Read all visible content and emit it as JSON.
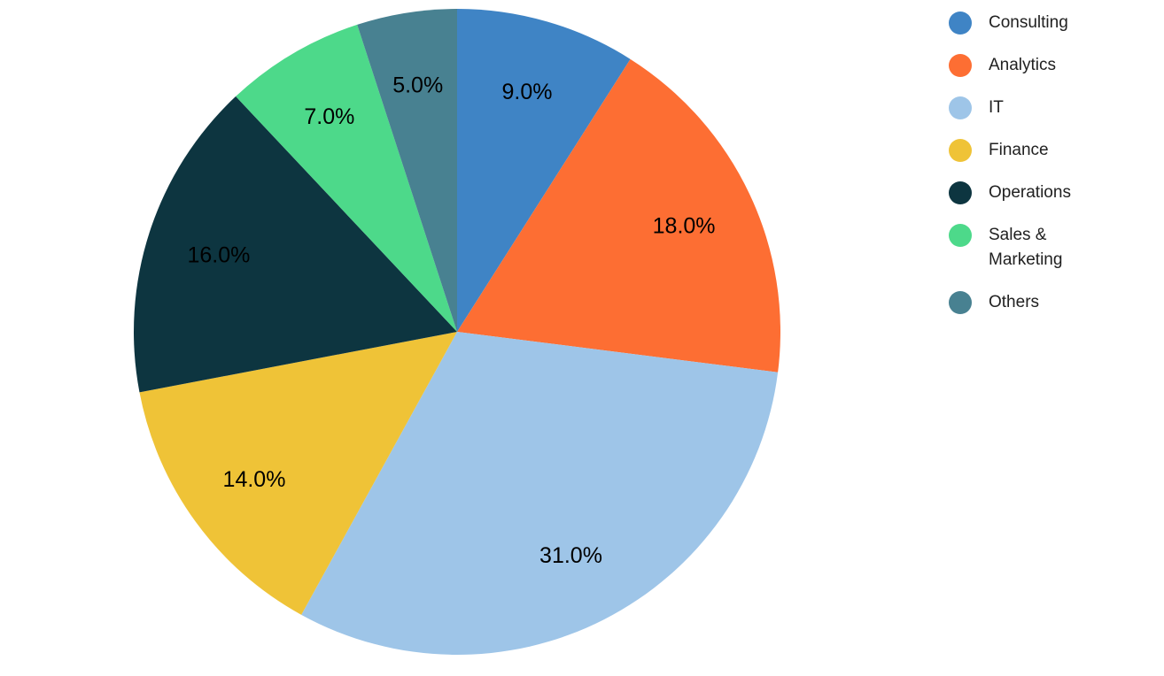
{
  "chart_data": {
    "type": "pie",
    "categories": [
      "Consulting",
      "Analytics",
      "IT",
      "Finance",
      "Operations",
      "Sales & Marketing",
      "Others"
    ],
    "values": [
      9,
      18,
      31,
      14,
      16,
      7,
      5
    ],
    "slice_labels": [
      "9.0%",
      "18.0%",
      "31.0%",
      "14.0%",
      "16.0%",
      "7.0%",
      "5.0%"
    ],
    "colors": [
      "#3F84C5",
      "#FD6E33",
      "#9EC5E8",
      "#EFC337",
      "#0D3540",
      "#4DD98A",
      "#488191"
    ],
    "start_angle_deg": 0,
    "direction": "clockwise",
    "legend_position": "right",
    "slice_label_color": "#000000",
    "legend_text_color": "#212121",
    "background_color": "#FFFFFF"
  }
}
